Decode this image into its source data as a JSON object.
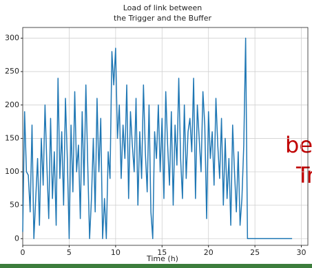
{
  "chart_data": {
    "type": "line",
    "title": [
      "Load of link between",
      "the Trigger and the Buffer"
    ],
    "x_label": "Time (h)",
    "color": "#1f77b4",
    "grid": true,
    "xlim": [
      0,
      30.7
    ],
    "ylim": [
      -10,
      316
    ],
    "xticks": [
      0,
      5,
      10,
      15,
      20,
      25,
      30
    ],
    "yticks": [
      0,
      50,
      100,
      150,
      200,
      250,
      300
    ],
    "x": [
      0,
      0.2,
      0.4,
      0.6,
      0.8,
      1,
      1.2,
      1.4,
      1.6,
      1.8,
      2,
      2.2,
      2.4,
      2.6,
      2.8,
      3,
      3.2,
      3.4,
      3.6,
      3.8,
      4,
      4.2,
      4.4,
      4.6,
      4.8,
      5,
      5.2,
      5.4,
      5.6,
      5.8,
      6,
      6.2,
      6.4,
      6.6,
      6.8,
      7,
      7.2,
      7.4,
      7.6,
      7.8,
      8,
      8.2,
      8.4,
      8.6,
      8.8,
      9,
      9.2,
      9.4,
      9.6,
      9.8,
      10,
      10.2,
      10.4,
      10.6,
      10.8,
      11,
      11.2,
      11.4,
      11.6,
      11.8,
      12,
      12.2,
      12.4,
      12.6,
      12.8,
      13,
      13.2,
      13.4,
      13.6,
      13.8,
      14,
      14.2,
      14.4,
      14.6,
      14.8,
      15,
      15.2,
      15.4,
      15.6,
      15.8,
      16,
      16.2,
      16.4,
      16.6,
      16.8,
      17,
      17.2,
      17.4,
      17.6,
      17.8,
      18,
      18.2,
      18.4,
      18.6,
      18.8,
      19,
      19.2,
      19.4,
      19.6,
      19.8,
      20,
      20.2,
      20.4,
      20.6,
      20.8,
      21,
      21.2,
      21.4,
      21.6,
      21.8,
      22,
      22.2,
      22.4,
      22.6,
      22.8,
      23,
      23.2,
      23.4,
      23.6,
      23.8,
      24,
      24.2,
      29
    ],
    "values": [
      10,
      190,
      100,
      95,
      40,
      170,
      0,
      60,
      120,
      20,
      150,
      80,
      200,
      110,
      30,
      180,
      60,
      130,
      20,
      240,
      90,
      160,
      50,
      210,
      120,
      0,
      170,
      70,
      220,
      100,
      140,
      30,
      190,
      80,
      230,
      110,
      0,
      60,
      150,
      40,
      210,
      100,
      180,
      0,
      60,
      0,
      130,
      90,
      280,
      230,
      285,
      150,
      200,
      90,
      170,
      120,
      230,
      60,
      190,
      140,
      100,
      210,
      50,
      160,
      90,
      230,
      130,
      70,
      200,
      40,
      0,
      160,
      120,
      200,
      100,
      180,
      60,
      220,
      140,
      80,
      190,
      50,
      170,
      110,
      240,
      120,
      60,
      200,
      90,
      160,
      180,
      130,
      240,
      60,
      200,
      150,
      100,
      220,
      170,
      30,
      190,
      120,
      160,
      80,
      210,
      140,
      90,
      180,
      50,
      150,
      60,
      120,
      20,
      170,
      100,
      40,
      130,
      20,
      60,
      140,
      300,
      0,
      0
    ]
  },
  "overlay": {
    "text_1": "be",
    "text_2": "Tr"
  }
}
